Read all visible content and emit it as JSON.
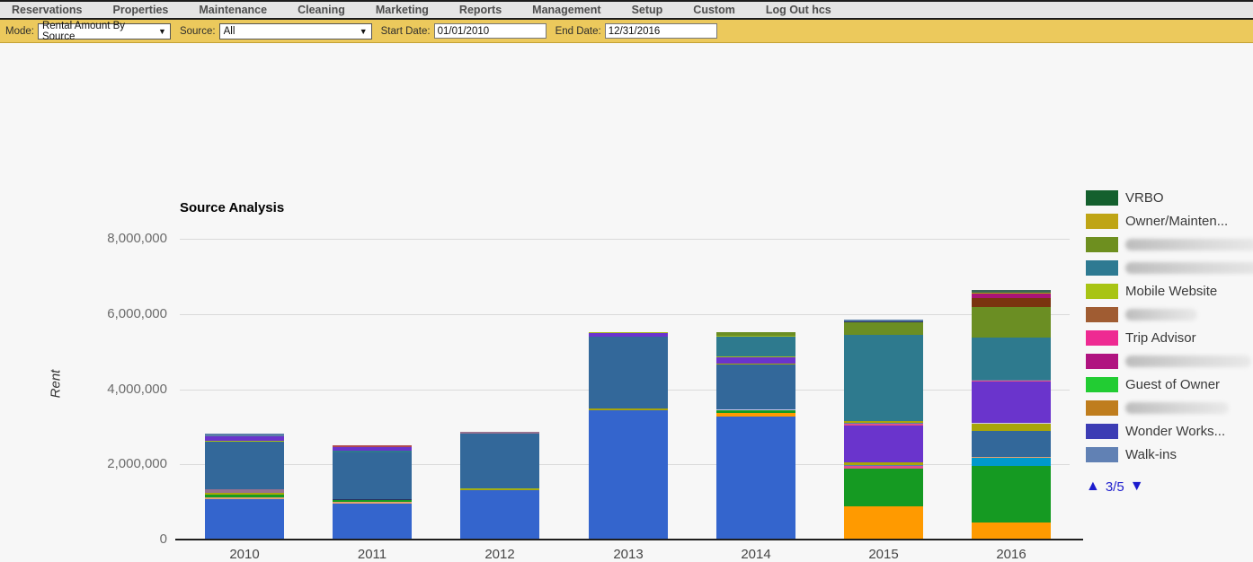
{
  "nav": {
    "items": [
      "Reservations",
      "Properties",
      "Maintenance",
      "Cleaning",
      "Marketing",
      "Reports",
      "Management",
      "Setup",
      "Custom",
      "Log Out hcs"
    ]
  },
  "toolbar": {
    "mode_label": "Mode:",
    "mode_value": "Rental Amount By Source",
    "source_label": "Source:",
    "source_value": "All",
    "start_date_label": "Start Date:",
    "start_date_value": "01/01/2010",
    "end_date_label": "End Date:",
    "end_date_value": "12/31/2016"
  },
  "icons": {
    "caret_down": "▼",
    "page_up": "▲",
    "page_down": "▼"
  },
  "chart_data": {
    "type": "bar",
    "stacked": true,
    "title": "Source Analysis",
    "xlabel": "",
    "ylabel": "Rent",
    "ylim": [
      0,
      8000000
    ],
    "yticks": [
      "0",
      "2,000,000",
      "4,000,000",
      "6,000,000",
      "8,000,000"
    ],
    "grid": true,
    "legend_position": "right",
    "categories": [
      "2010",
      "2011",
      "2012",
      "2013",
      "2014",
      "2015",
      "2016"
    ],
    "totals_approx": [
      2795000,
      2490000,
      2870000,
      5515000,
      5495000,
      5840000,
      6607000
    ],
    "colors": {
      "royal-blue": "#3465cd",
      "steel-blue": "#33689a",
      "teal": "#2e7a8e",
      "purple": "#6a34cc",
      "orange": "#ff9a00",
      "green": "#159a22",
      "olive-green": "#6b8e23",
      "dark-red": "#7a330f",
      "dark-yellow": "#a8a50a",
      "cyan": "#0099cc",
      "yellow-green": "#a4bc1a",
      "tan": "#e2a171",
      "mauve": "#97728f",
      "slate": "#5b7fa8",
      "navy": "#28315e",
      "pink": "#e0508c",
      "magenta": "#aa1478",
      "lavender": "#cfc8ee",
      "dark-slate-green": "#3d6458",
      "crimson": "#b04a52"
    },
    "bars": [
      {
        "year": "2010",
        "segments": [
          [
            "royal-blue",
            1060000
          ],
          [
            "tan",
            45000
          ],
          [
            "green",
            60000
          ],
          [
            "dark-yellow",
            55000
          ],
          [
            "mauve",
            85000
          ],
          [
            "steel-blue",
            1280000
          ],
          [
            "yellow-green",
            35000
          ],
          [
            "purple",
            110000
          ],
          [
            "slate",
            65000
          ]
        ]
      },
      {
        "year": "2011",
        "segments": [
          [
            "royal-blue",
            930000
          ],
          [
            "tan",
            40000
          ],
          [
            "green",
            55000
          ],
          [
            "navy",
            30000
          ],
          [
            "steel-blue",
            1250000
          ],
          [
            "teal",
            40000
          ],
          [
            "purple",
            95000
          ],
          [
            "crimson",
            50000
          ]
        ]
      },
      {
        "year": "2012",
        "segments": [
          [
            "royal-blue",
            1300000
          ],
          [
            "dark-yellow",
            30000
          ],
          [
            "yellow-green",
            30000
          ],
          [
            "steel-blue",
            1460000
          ],
          [
            "mauve",
            50000
          ]
        ]
      },
      {
        "year": "2013",
        "segments": [
          [
            "royal-blue",
            3420000
          ],
          [
            "dark-yellow",
            40000
          ],
          [
            "steel-blue",
            1920000
          ],
          [
            "purple",
            100000
          ],
          [
            "yellow-green",
            35000
          ]
        ]
      },
      {
        "year": "2014",
        "segments": [
          [
            "royal-blue",
            3250000
          ],
          [
            "orange",
            85000
          ],
          [
            "green",
            80000
          ],
          [
            "lavender",
            25000
          ],
          [
            "steel-blue",
            1200000
          ],
          [
            "dark-yellow",
            30000
          ],
          [
            "purple",
            160000
          ],
          [
            "yellow-green",
            30000
          ],
          [
            "teal",
            520000
          ],
          [
            "yellow-green",
            25000
          ],
          [
            "olive-green",
            90000
          ]
        ]
      },
      {
        "year": "2015",
        "segments": [
          [
            "orange",
            850000
          ],
          [
            "green",
            1000000
          ],
          [
            "pink",
            60000
          ],
          [
            "slate",
            25000
          ],
          [
            "dark-yellow",
            80000
          ],
          [
            "purple",
            990000
          ],
          [
            "pink",
            40000
          ],
          [
            "slate",
            35000
          ],
          [
            "dark-yellow",
            55000
          ],
          [
            "teal",
            2300000
          ],
          [
            "olive-green",
            330000
          ],
          [
            "navy",
            25000
          ],
          [
            "slate",
            50000
          ]
        ]
      },
      {
        "year": "2016",
        "segments": [
          [
            "orange",
            430000
          ],
          [
            "green",
            1500000
          ],
          [
            "cyan",
            220000
          ],
          [
            "tan",
            25000
          ],
          [
            "steel-blue",
            700000
          ],
          [
            "dark-yellow",
            185000
          ],
          [
            "lavender",
            20000
          ],
          [
            "purple",
            1090000
          ],
          [
            "pink",
            35000
          ],
          [
            "slate",
            30000
          ],
          [
            "teal",
            1120000
          ],
          [
            "olive-green",
            810000
          ],
          [
            "dark-red",
            227000
          ],
          [
            "magenta",
            110000
          ],
          [
            "dark-yellow",
            30000
          ],
          [
            "dark-slate-green",
            75000
          ]
        ]
      }
    ]
  },
  "legend": {
    "items": [
      {
        "label": "VRBO",
        "color": "#14602e",
        "redacted": false
      },
      {
        "label": "Owner/Mainten...",
        "color": "#bfa515",
        "redacted": false
      },
      {
        "label": "",
        "color": "#6e8f1f",
        "redacted": true,
        "redacted_width": 150
      },
      {
        "label": "",
        "color": "#2e7a92",
        "redacted": true,
        "redacted_width": 165
      },
      {
        "label": "Mobile Website",
        "color": "#a8c414",
        "redacted": false
      },
      {
        "label": "",
        "color": "#a05c32",
        "redacted": true,
        "redacted_width": 80
      },
      {
        "label": "Trip Advisor",
        "color": "#ee2a92",
        "redacted": false
      },
      {
        "label": "",
        "color": "#b01380",
        "redacted": true,
        "redacted_width": 140
      },
      {
        "label": "Guest of Owner",
        "color": "#22cc33",
        "redacted": false
      },
      {
        "label": "",
        "color": "#bf7d1e",
        "redacted": true,
        "redacted_width": 115
      },
      {
        "label": "Wonder Works...",
        "color": "#3c3cb4",
        "redacted": false
      },
      {
        "label": "Walk-ins",
        "color": "#6181b4",
        "redacted": false
      }
    ],
    "pagination": {
      "page": "3/5"
    }
  }
}
